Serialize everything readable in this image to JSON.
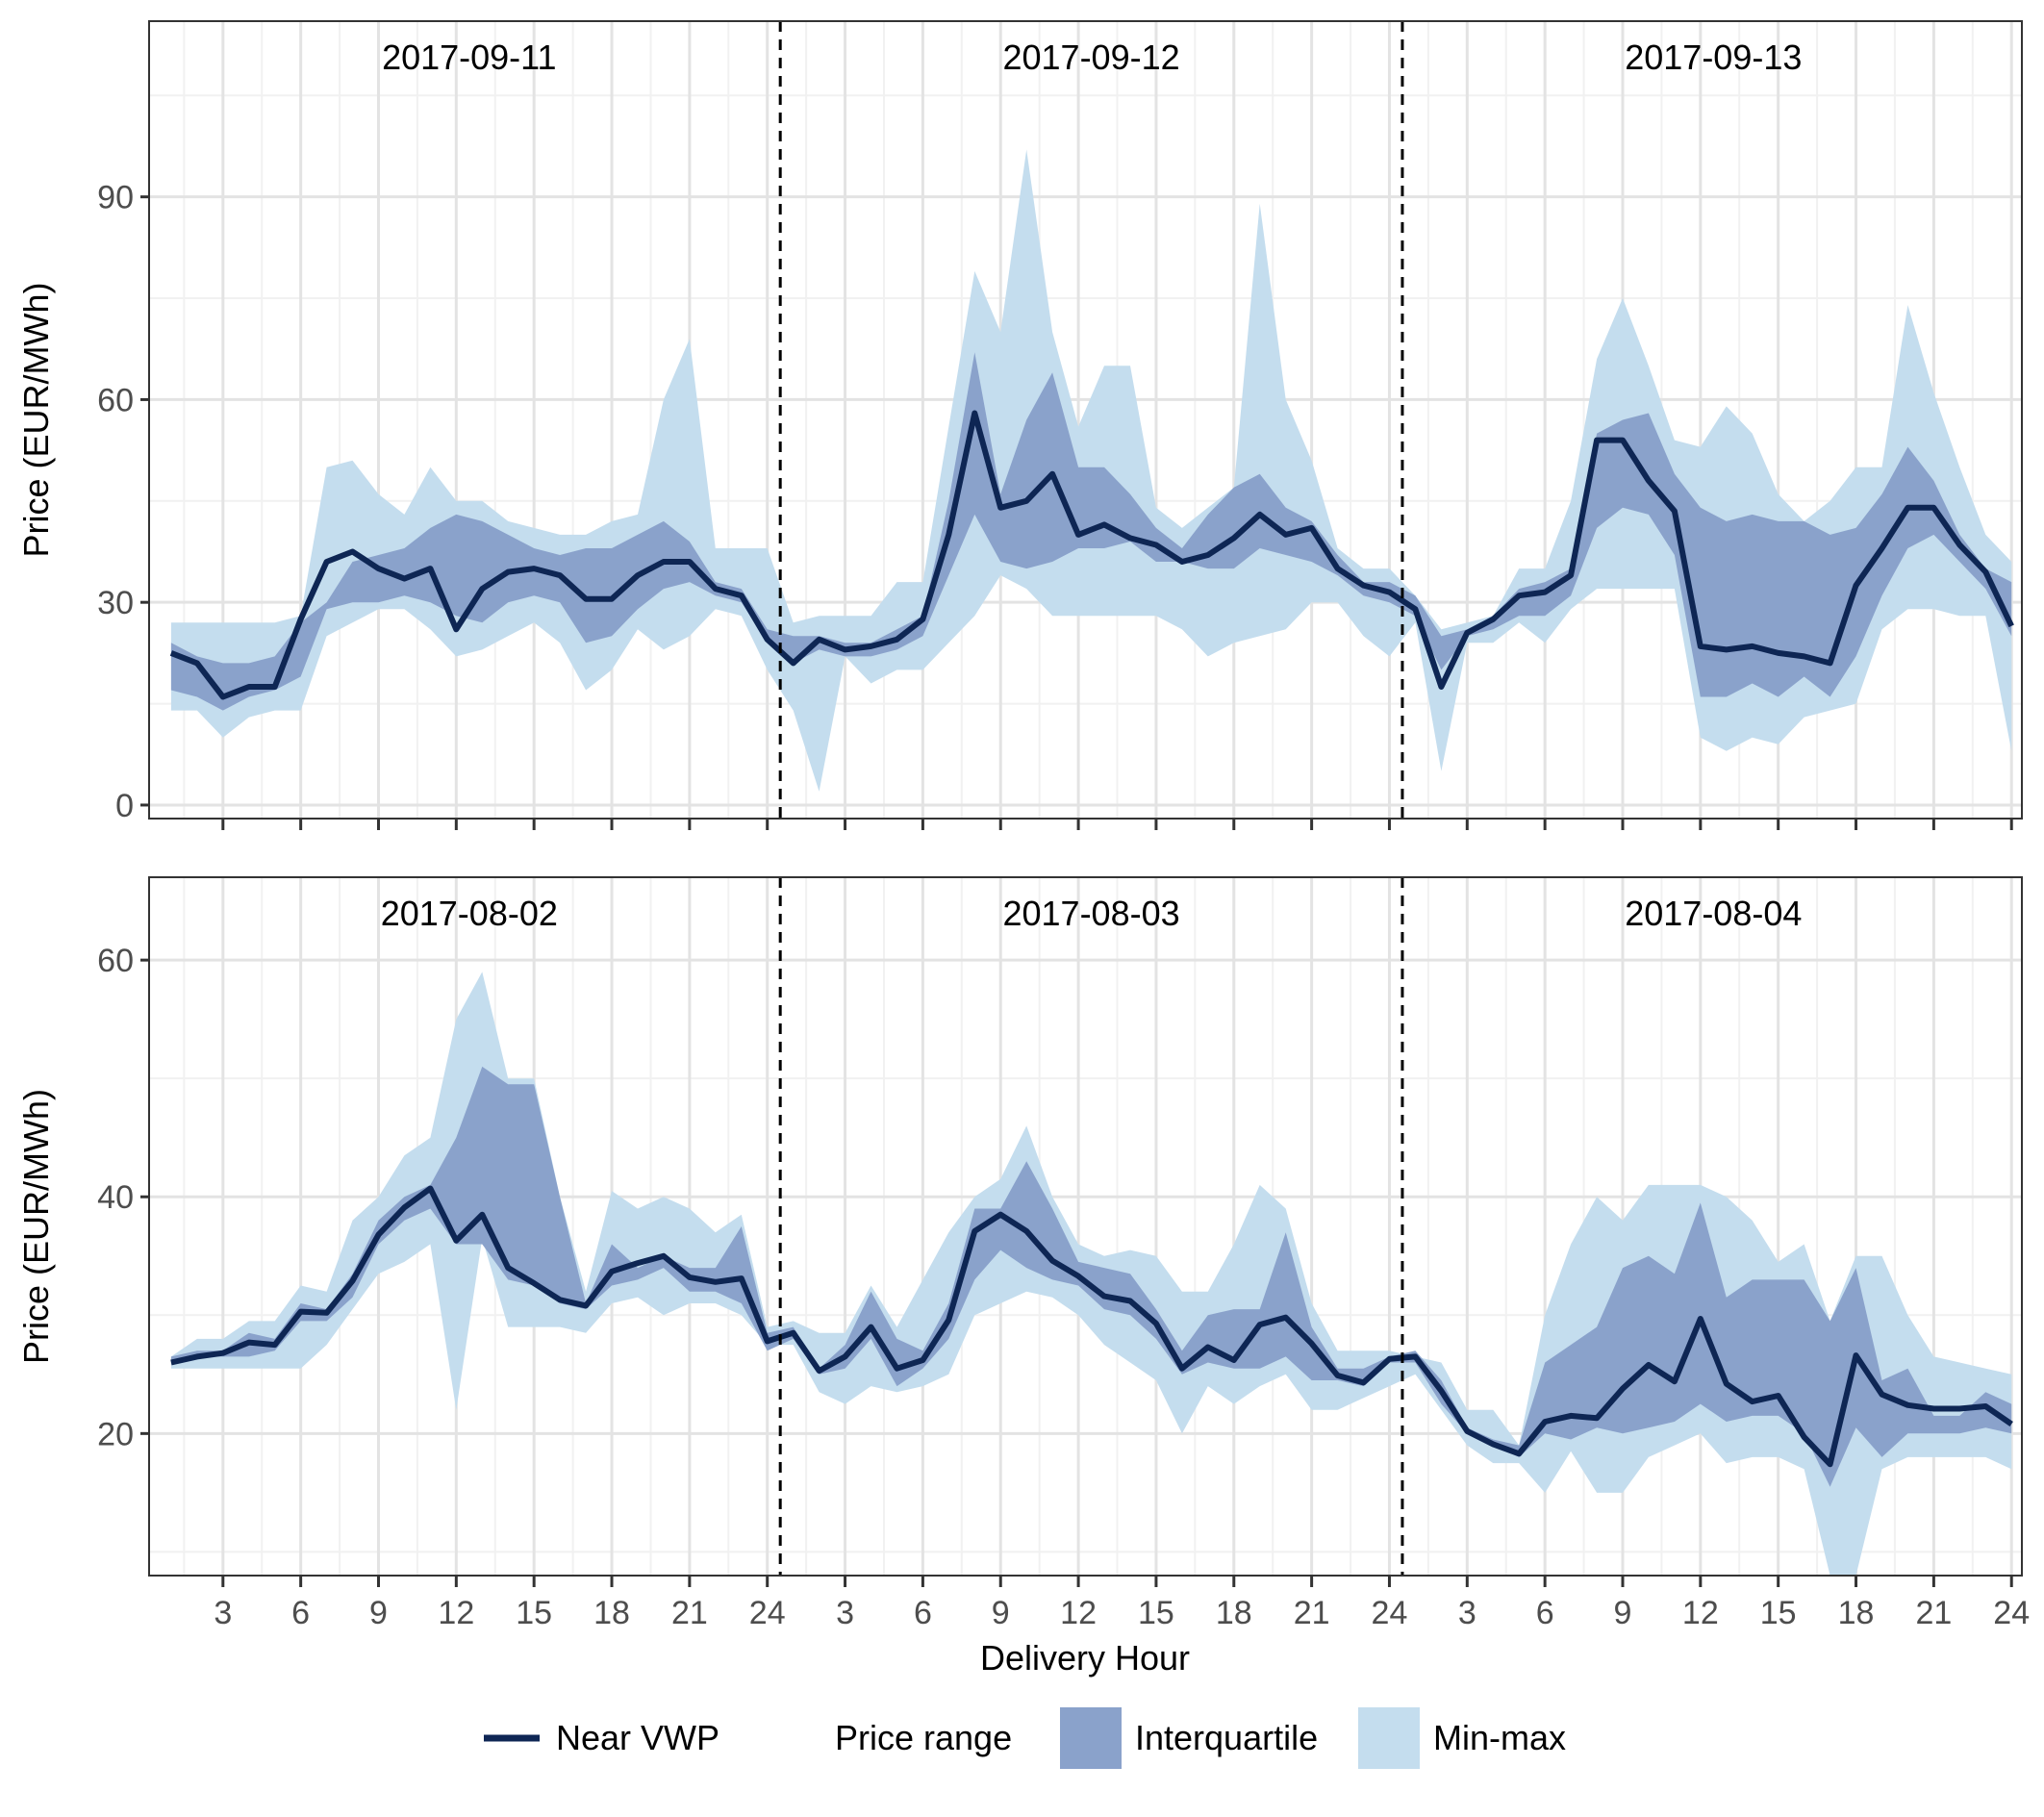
{
  "chart_data": [
    {
      "type": "area",
      "panel": "top",
      "ylabel": "Price (EUR/MWh)",
      "ylim": [
        -2,
        116
      ],
      "yticks": [
        0,
        30,
        60,
        90
      ],
      "grid": true,
      "day_labels": [
        "2017-09-11",
        "2017-09-12",
        "2017-09-13"
      ],
      "x": [
        1,
        2,
        3,
        4,
        5,
        6,
        7,
        8,
        9,
        10,
        11,
        12,
        13,
        14,
        15,
        16,
        17,
        18,
        19,
        20,
        21,
        22,
        23,
        24,
        25,
        26,
        27,
        28,
        29,
        30,
        31,
        32,
        33,
        34,
        35,
        36,
        37,
        38,
        39,
        40,
        41,
        42,
        43,
        44,
        45,
        46,
        47,
        48,
        49,
        50,
        51,
        52,
        53,
        54,
        55,
        56,
        57,
        58,
        59,
        60,
        61,
        62,
        63,
        64,
        65,
        66,
        67,
        68,
        69,
        70,
        71,
        72
      ],
      "series": [
        {
          "name": "Near VWP",
          "values": [
            22.5,
            21,
            16,
            17.5,
            17.5,
            27.5,
            36,
            37.5,
            35,
            33.5,
            35,
            26,
            32,
            34.5,
            35,
            34,
            30.5,
            30.5,
            34,
            36,
            36,
            32,
            31,
            24.5,
            21,
            24.5,
            23,
            23.5,
            24.5,
            27.5,
            40,
            58,
            44,
            45,
            49,
            40,
            41.5,
            39.5,
            38.5,
            36,
            37,
            39.5,
            43,
            40,
            41,
            35,
            32.5,
            31.5,
            29,
            17.5,
            25.5,
            27.5,
            31,
            31.5,
            34,
            54,
            54,
            48,
            43.5,
            23.5,
            23,
            23.5,
            22.5,
            22,
            21,
            32.5,
            38,
            44,
            44,
            38.5,
            34.5,
            26.5
          ]
        },
        {
          "name": "Interquartile",
          "lower": [
            17,
            16,
            14,
            16,
            17,
            19,
            29,
            30,
            30,
            31,
            30,
            28,
            27,
            30,
            31,
            30,
            24,
            25,
            29,
            32,
            33,
            31,
            30,
            24,
            21,
            23,
            22,
            22,
            23,
            25,
            34,
            43,
            36,
            35,
            36,
            38,
            38,
            39,
            36,
            36,
            35,
            35,
            38,
            37,
            36,
            34,
            31,
            30,
            28,
            20,
            25,
            26,
            28,
            28,
            31,
            41,
            44,
            43,
            37,
            16,
            16,
            18,
            16,
            19,
            16,
            22,
            31,
            38,
            40,
            36,
            32,
            25
          ],
          "upper": [
            24,
            22,
            21,
            21,
            22,
            27,
            30,
            36,
            37,
            38,
            41,
            43,
            42,
            40,
            38,
            37,
            38,
            38,
            40,
            42,
            39,
            33,
            32,
            26,
            25,
            25,
            24,
            24,
            26,
            28,
            45,
            67,
            46,
            57,
            64,
            50,
            50,
            46,
            41,
            38,
            43,
            47,
            49,
            44,
            42,
            37,
            33,
            33,
            31,
            25,
            26,
            28,
            32,
            33,
            35,
            55,
            57,
            58,
            49,
            44,
            42,
            43,
            42,
            42,
            40,
            41,
            46,
            53,
            48,
            40,
            35,
            33
          ]
        },
        {
          "name": "Min-max",
          "lower": [
            14,
            14,
            10,
            13,
            14,
            14,
            25,
            27,
            29,
            29,
            26,
            22,
            23,
            25,
            27,
            24,
            17,
            20,
            26,
            23,
            25,
            29,
            28,
            20,
            14,
            2,
            22,
            18,
            20,
            20,
            24,
            28,
            34,
            32,
            28,
            28,
            28,
            28,
            28,
            26,
            22,
            24,
            25,
            26,
            30,
            30,
            25,
            22,
            27,
            5,
            24,
            24,
            27,
            24,
            29,
            32,
            32,
            32,
            32,
            10,
            8,
            10,
            9,
            13,
            14,
            15,
            26,
            29,
            29,
            28,
            28,
            8
          ],
          "upper": [
            27,
            27,
            27,
            27,
            27,
            28,
            50,
            51,
            46,
            43,
            50,
            45,
            45,
            42,
            41,
            40,
            40,
            42,
            43,
            60,
            69,
            38,
            38,
            38,
            27,
            28,
            28,
            28,
            33,
            33,
            56,
            79,
            70,
            97,
            70,
            56,
            65,
            65,
            44,
            41,
            44,
            47,
            89,
            60,
            51,
            38,
            35,
            35,
            31,
            26,
            27,
            28,
            35,
            35,
            45,
            66,
            75,
            65,
            54,
            53,
            59,
            55,
            46,
            42,
            45,
            50,
            50,
            74,
            61,
            50,
            40,
            36
          ]
        }
      ]
    },
    {
      "type": "area",
      "panel": "bottom",
      "xlabel": "Delivery Hour",
      "ylabel": "Price (EUR/MWh)",
      "ylim": [
        8,
        67
      ],
      "yticks": [
        20,
        40,
        60
      ],
      "grid": true,
      "day_labels": [
        "2017-08-02",
        "2017-08-03",
        "2017-08-04"
      ],
      "x_tick_labels": [
        "3",
        "6",
        "9",
        "12",
        "15",
        "18",
        "21",
        "24",
        "3",
        "6",
        "9",
        "12",
        "15",
        "18",
        "21",
        "24",
        "3",
        "6",
        "9",
        "12",
        "15",
        "18",
        "21",
        "24"
      ],
      "x": [
        1,
        2,
        3,
        4,
        5,
        6,
        7,
        8,
        9,
        10,
        11,
        12,
        13,
        14,
        15,
        16,
        17,
        18,
        19,
        20,
        21,
        22,
        23,
        24,
        25,
        26,
        27,
        28,
        29,
        30,
        31,
        32,
        33,
        34,
        35,
        36,
        37,
        38,
        39,
        40,
        41,
        42,
        43,
        44,
        45,
        46,
        47,
        48,
        49,
        50,
        51,
        52,
        53,
        54,
        55,
        56,
        57,
        58,
        59,
        60,
        61,
        62,
        63,
        64,
        65,
        66,
        67,
        68,
        69,
        70,
        71,
        72
      ],
      "series": [
        {
          "name": "Near VWP",
          "values": [
            26,
            26.5,
            26.8,
            27.7,
            27.5,
            30.3,
            30.2,
            32.9,
            36.8,
            39.1,
            40.7,
            36.3,
            38.5,
            34,
            32.7,
            31.3,
            30.8,
            33.7,
            34.4,
            35,
            33.2,
            32.8,
            33.1,
            27.8,
            28.5,
            25.3,
            26.5,
            29,
            25.5,
            26.2,
            29.6,
            37.1,
            38.5,
            37.1,
            34.6,
            33.3,
            31.6,
            31.2,
            29.3,
            25.5,
            27.3,
            26.2,
            29.2,
            29.8,
            27.6,
            24.9,
            24.3,
            26.3,
            26.5,
            23.6,
            20.2,
            19.1,
            18.3,
            21,
            21.5,
            21.3,
            23.8,
            25.8,
            24.4,
            29.7,
            24.2,
            22.7,
            23.2,
            19.7,
            17.4,
            26.6,
            23.3,
            22.4,
            22.1,
            22.1,
            22.3,
            20.8
          ]
        },
        {
          "name": "Interquartile",
          "lower": [
            26,
            26.5,
            26.5,
            26.5,
            27,
            29.5,
            29.5,
            31.5,
            36,
            38,
            39,
            36,
            36,
            33,
            32.5,
            31,
            30.5,
            32.5,
            33,
            34,
            32,
            32,
            31,
            27,
            28,
            25,
            25.5,
            28,
            24,
            25.5,
            28,
            33,
            35.5,
            34,
            33,
            32.5,
            30.5,
            30,
            28,
            25,
            26,
            25.5,
            25.5,
            26.5,
            24.5,
            24.5,
            24,
            26,
            26,
            22.5,
            20,
            19,
            18,
            20,
            19.5,
            20.5,
            20,
            20.5,
            21,
            22.5,
            21,
            21.5,
            21.5,
            20,
            15.5,
            20.5,
            18,
            20,
            20,
            20,
            20.5,
            20
          ],
          "upper": [
            26.5,
            27,
            27,
            28.5,
            28,
            31,
            30.5,
            33.5,
            38,
            40,
            41,
            45,
            51,
            49.5,
            49.5,
            40,
            31,
            36,
            34,
            35,
            34,
            34,
            37.5,
            28.5,
            29,
            25.5,
            27.5,
            32,
            28,
            27,
            31,
            39,
            39,
            43,
            39,
            34.5,
            34,
            33.5,
            30.5,
            27,
            30,
            30.5,
            30.5,
            37,
            29,
            25.5,
            25.5,
            26.5,
            27,
            24.5,
            20.5,
            19.5,
            19,
            26,
            27.5,
            29,
            34,
            35,
            33.5,
            39.5,
            31.5,
            33,
            33,
            33,
            29.5,
            34,
            24.5,
            25.5,
            21.5,
            21.5,
            23.5,
            22.5
          ]
        },
        {
          "name": "Min-max",
          "lower": [
            25.5,
            25.5,
            25.5,
            25.5,
            25.5,
            25.5,
            27.5,
            30.5,
            33.5,
            34.5,
            36,
            22,
            36.5,
            29,
            29,
            29,
            28.5,
            31,
            31.5,
            30,
            31,
            31,
            30,
            27.5,
            27.5,
            23.5,
            22.5,
            24,
            23.5,
            24,
            25,
            30,
            31,
            32,
            31.5,
            30,
            27.5,
            26,
            24.5,
            20,
            24,
            22.5,
            24,
            25,
            22,
            22,
            23,
            24,
            25,
            22,
            19,
            17.5,
            17.5,
            15,
            18.5,
            15,
            15,
            18,
            19,
            20,
            17.5,
            18,
            18,
            17,
            8,
            8,
            17,
            18,
            18,
            18,
            18,
            17
          ],
          "upper": [
            26.5,
            28,
            28,
            29.5,
            29.5,
            32.5,
            32,
            38,
            40,
            43.5,
            45,
            55,
            59,
            50,
            50,
            40,
            32,
            40.5,
            39,
            40,
            39,
            37,
            38.5,
            29,
            29.5,
            28.5,
            28.5,
            32.5,
            29,
            33,
            37,
            40,
            41.5,
            46,
            40,
            36,
            35,
            35.5,
            35,
            32,
            32,
            36,
            41,
            39,
            31,
            27,
            27,
            27,
            26.5,
            26,
            22,
            22,
            19,
            30,
            36,
            40,
            38,
            41,
            41,
            41,
            40,
            38,
            34.5,
            36,
            29.5,
            35,
            35,
            30,
            26.5,
            26,
            25.5,
            25
          ]
        }
      ]
    }
  ],
  "legend": {
    "vwp_label": "Near VWP",
    "range_title": "Price range",
    "iqr_label": "Interquartile",
    "minmax_label": "Min-max"
  },
  "colors": {
    "line": "#0e2654",
    "interquartile": "#8aa2cb",
    "minmax": "#c4ddee",
    "grid_major": "#e3e3e3",
    "grid_minor": "#f1f1f1"
  }
}
